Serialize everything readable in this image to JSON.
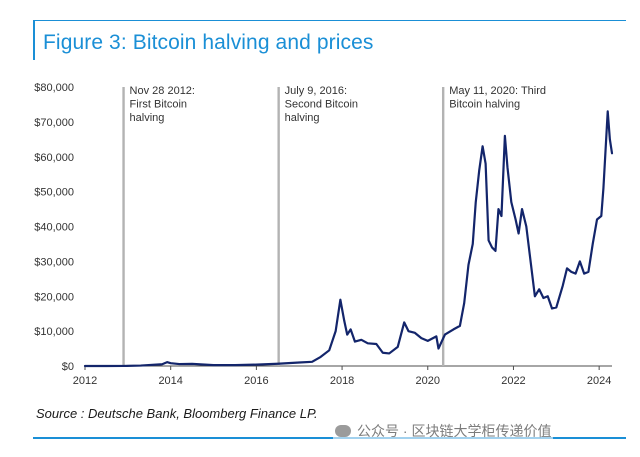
{
  "figure": {
    "title": "Figure 3: Bitcoin halving and prices",
    "source": "Source : Deutsche Bank, Bloomberg Finance LP.",
    "watermark": "公众号 · 区块链大学柜传递价值"
  },
  "colors": {
    "accent": "#1a8fd6",
    "series": "#13256b",
    "halving_line": "#b3b3b3",
    "axis": "#4d4d4d",
    "text": "#333333"
  },
  "chart_data": {
    "type": "line",
    "title": "Figure 3: Bitcoin halving and prices",
    "xlabel": "",
    "ylabel": "",
    "xlim": [
      2012,
      2024.3
    ],
    "ylim": [
      0,
      80000
    ],
    "grid": false,
    "x_ticks": [
      2012,
      2014,
      2016,
      2018,
      2020,
      2022,
      2024
    ],
    "x_tick_labels": [
      "2012",
      "2014",
      "2016",
      "2018",
      "2020",
      "2022",
      "2024"
    ],
    "y_ticks": [
      0,
      10000,
      20000,
      30000,
      40000,
      50000,
      60000,
      70000,
      80000
    ],
    "y_tick_labels": [
      "$0",
      "$10,000",
      "$20,000",
      "$30,000",
      "$40,000",
      "$50,000",
      "$60,000",
      "$70,000",
      "$80,000"
    ],
    "halvings": [
      {
        "x": 2012.9,
        "label_lines": [
          "Nov 28 2012:",
          "First Bitcoin",
          "halving"
        ]
      },
      {
        "x": 2016.52,
        "label_lines": [
          "July 9, 2016:",
          "Second Bitcoin",
          "halving"
        ]
      },
      {
        "x": 2020.36,
        "label_lines": [
          "May 11, 2020: Third",
          "Bitcoin halving"
        ]
      }
    ],
    "series": [
      {
        "name": "Bitcoin price (USD)",
        "x": [
          2012.0,
          2012.5,
          2012.9,
          2013.3,
          2013.8,
          2013.92,
          2014.0,
          2014.2,
          2014.5,
          2015.0,
          2015.5,
          2016.0,
          2016.5,
          2017.0,
          2017.3,
          2017.5,
          2017.7,
          2017.85,
          2017.96,
          2018.05,
          2018.12,
          2018.2,
          2018.3,
          2018.45,
          2018.6,
          2018.8,
          2018.95,
          2019.1,
          2019.3,
          2019.45,
          2019.55,
          2019.7,
          2019.85,
          2020.0,
          2020.2,
          2020.25,
          2020.4,
          2020.6,
          2020.75,
          2020.85,
          2020.95,
          2021.05,
          2021.12,
          2021.2,
          2021.28,
          2021.35,
          2021.42,
          2021.5,
          2021.58,
          2021.65,
          2021.72,
          2021.8,
          2021.86,
          2021.95,
          2022.05,
          2022.12,
          2022.2,
          2022.3,
          2022.4,
          2022.5,
          2022.6,
          2022.7,
          2022.8,
          2022.9,
          2023.0,
          2023.15,
          2023.25,
          2023.35,
          2023.45,
          2023.55,
          2023.65,
          2023.75,
          2023.85,
          2023.95,
          2024.05,
          2024.1,
          2024.15,
          2024.2,
          2024.25,
          2024.3
        ],
        "y": [
          5,
          7,
          12,
          120,
          500,
          1100,
          800,
          550,
          600,
          250,
          260,
          400,
          650,
          1000,
          1200,
          2600,
          4500,
          10000,
          19000,
          13000,
          9000,
          10500,
          7000,
          7500,
          6500,
          6300,
          3800,
          3600,
          5500,
          12500,
          10000,
          9500,
          8000,
          7200,
          8500,
          5000,
          9000,
          10500,
          11500,
          18000,
          29000,
          35000,
          47000,
          56000,
          63000,
          58000,
          36000,
          34000,
          33000,
          45000,
          43000,
          66000,
          57000,
          47000,
          42000,
          38000,
          45000,
          40000,
          30000,
          20000,
          22000,
          19500,
          20000,
          16500,
          16800,
          23000,
          28000,
          27000,
          26500,
          30000,
          26500,
          27000,
          35000,
          42000,
          43000,
          51000,
          62000,
          73000,
          65000,
          61000
        ]
      }
    ]
  }
}
